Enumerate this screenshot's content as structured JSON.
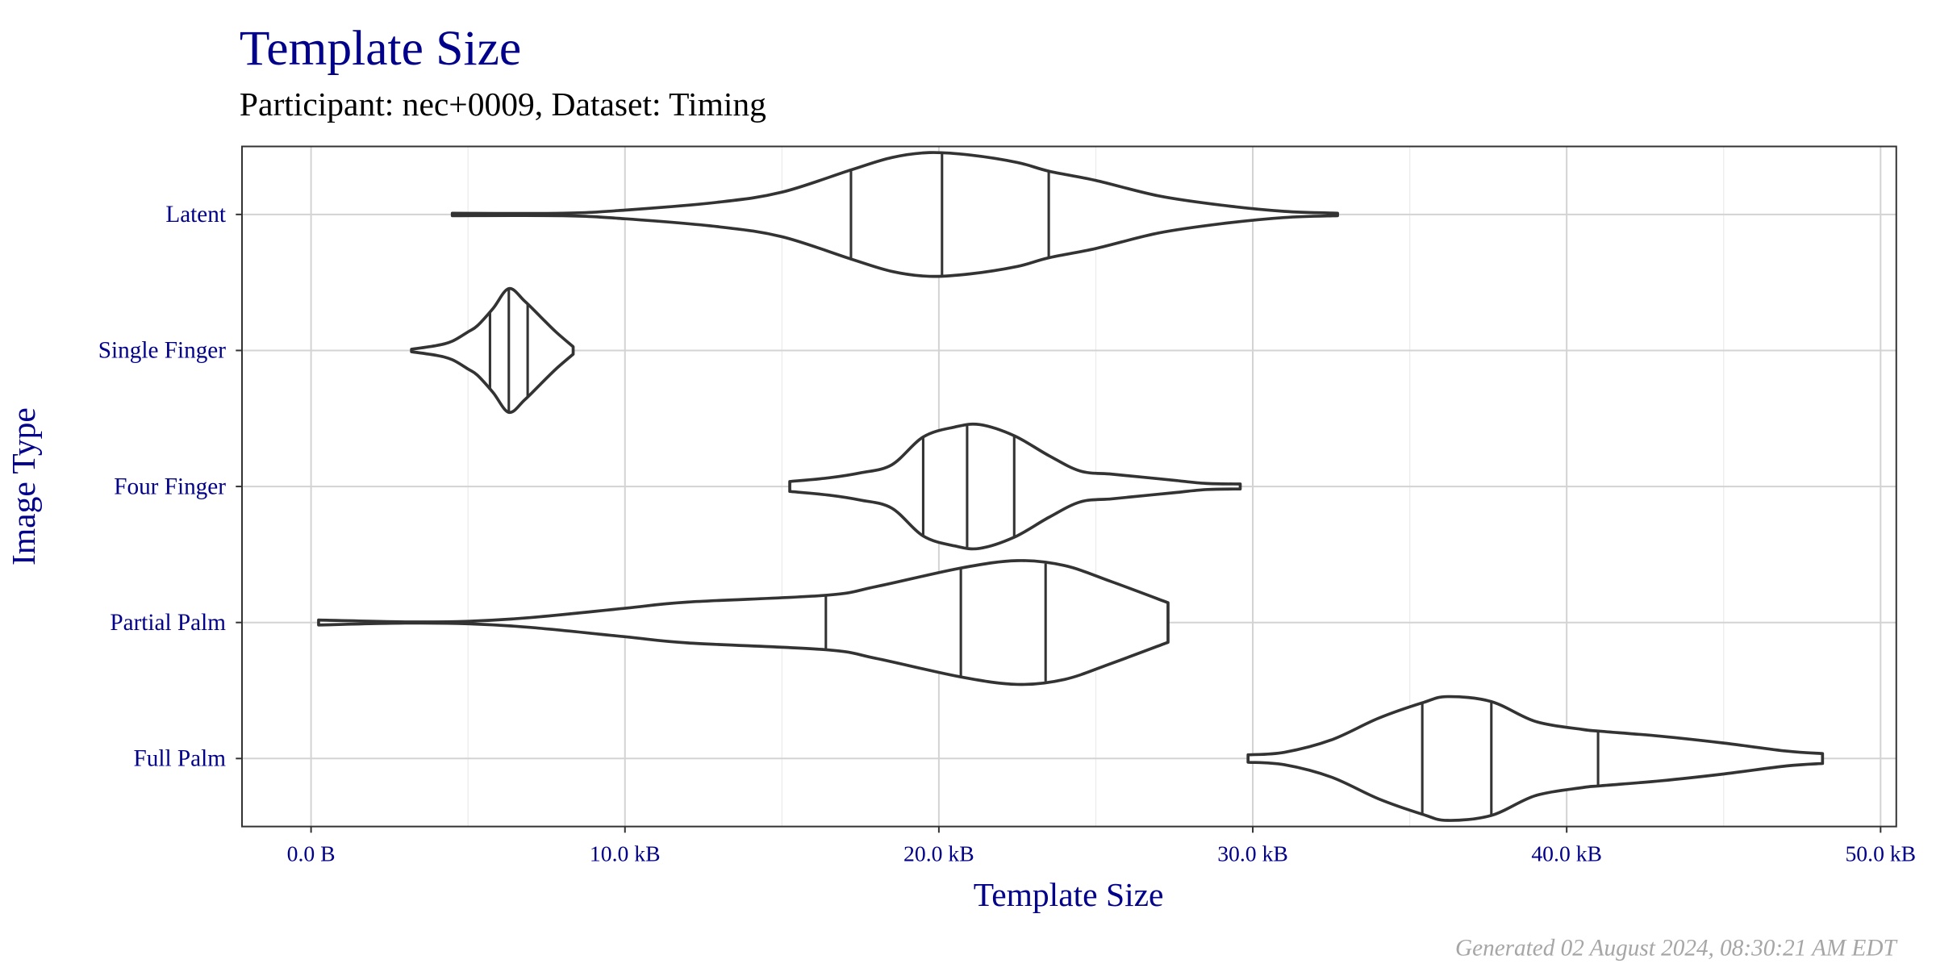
{
  "title": "Template Size",
  "subtitle": "Participant: nec+0009, Dataset: Timing",
  "footer": "Generated 02 August 2024, 08:30:21 AM EDT",
  "colors": {
    "text": "#00008B",
    "violin": "#333333",
    "grid": "#D3D3D3",
    "footer": "#A6A6A6"
  },
  "chart_data": {
    "type": "violin",
    "orientation": "horizontal",
    "xlabel": "Template Size",
    "ylabel": "Image Type",
    "xlim": [
      -2.2,
      50.5
    ],
    "x_unit": "kB",
    "xticks": [
      0,
      10,
      20,
      30,
      40,
      50
    ],
    "xtick_labels": [
      "0.0 B",
      "10.0 kB",
      "20.0 kB",
      "30.0 kB",
      "40.0 kB",
      "50.0 kB"
    ],
    "x_minor_ticks": [
      5,
      15,
      25,
      35,
      45
    ],
    "grid": true,
    "categories": [
      "Latent",
      "Single Finger",
      "Four Finger",
      "Partial Palm",
      "Full Palm"
    ],
    "series": [
      {
        "category": "Latent",
        "min": 4.5,
        "max": 32.7,
        "quantiles": [
          17.2,
          20.1,
          23.5
        ],
        "density": [
          [
            4.5,
            0.02
          ],
          [
            8,
            0.02
          ],
          [
            10,
            0.07
          ],
          [
            13,
            0.2
          ],
          [
            15,
            0.36
          ],
          [
            17.2,
            0.72
          ],
          [
            18.5,
            0.92
          ],
          [
            19.7,
            1.0
          ],
          [
            21,
            0.96
          ],
          [
            22.5,
            0.84
          ],
          [
            23.5,
            0.7
          ],
          [
            25,
            0.55
          ],
          [
            27,
            0.3
          ],
          [
            29,
            0.15
          ],
          [
            31,
            0.05
          ],
          [
            32.7,
            0.02
          ]
        ]
      },
      {
        "category": "Single Finger",
        "min": 3.2,
        "max": 8.35,
        "quantiles": [
          5.7,
          6.3,
          6.9
        ],
        "density": [
          [
            3.2,
            0.02
          ],
          [
            4.0,
            0.08
          ],
          [
            4.5,
            0.15
          ],
          [
            5.0,
            0.3
          ],
          [
            5.3,
            0.4
          ],
          [
            5.8,
            0.68
          ],
          [
            6.3,
            1.0
          ],
          [
            6.8,
            0.8
          ],
          [
            7.3,
            0.55
          ],
          [
            7.8,
            0.3
          ],
          [
            8.35,
            0.06
          ]
        ]
      },
      {
        "category": "Four Finger",
        "min": 15.25,
        "max": 29.6,
        "quantiles": [
          19.5,
          20.9,
          22.4
        ],
        "density": [
          [
            15.25,
            0.08
          ],
          [
            16.5,
            0.14
          ],
          [
            17.5,
            0.22
          ],
          [
            18.5,
            0.35
          ],
          [
            19.5,
            0.8
          ],
          [
            20.5,
            0.96
          ],
          [
            21.3,
            1.0
          ],
          [
            22.4,
            0.82
          ],
          [
            23.5,
            0.5
          ],
          [
            24.5,
            0.25
          ],
          [
            25.5,
            0.2
          ],
          [
            26.5,
            0.15
          ],
          [
            27.5,
            0.1
          ],
          [
            28.5,
            0.05
          ],
          [
            29.6,
            0.04
          ]
        ]
      },
      {
        "category": "Partial Palm",
        "min": 0.24,
        "max": 27.3,
        "quantiles": [
          16.4,
          20.7,
          23.4
        ],
        "density": [
          [
            0.24,
            0.04
          ],
          [
            3,
            0.01
          ],
          [
            5,
            0.02
          ],
          [
            7,
            0.08
          ],
          [
            10,
            0.23
          ],
          [
            12,
            0.33
          ],
          [
            16.4,
            0.44
          ],
          [
            18,
            0.58
          ],
          [
            20.7,
            0.88
          ],
          [
            22.5,
            1.0
          ],
          [
            24,
            0.92
          ],
          [
            25.5,
            0.66
          ],
          [
            27.3,
            0.32
          ]
        ]
      },
      {
        "category": "Full Palm",
        "min": 29.85,
        "max": 48.15,
        "quantiles": [
          35.4,
          37.6,
          41.0
        ],
        "density": [
          [
            29.85,
            0.06
          ],
          [
            31,
            0.1
          ],
          [
            32.5,
            0.3
          ],
          [
            34,
            0.65
          ],
          [
            35.4,
            0.9
          ],
          [
            36.2,
            1.0
          ],
          [
            37.6,
            0.92
          ],
          [
            39,
            0.6
          ],
          [
            40.5,
            0.47
          ],
          [
            41.1,
            0.44
          ],
          [
            43,
            0.36
          ],
          [
            45,
            0.25
          ],
          [
            47,
            0.12
          ],
          [
            48.15,
            0.08
          ]
        ]
      }
    ]
  }
}
